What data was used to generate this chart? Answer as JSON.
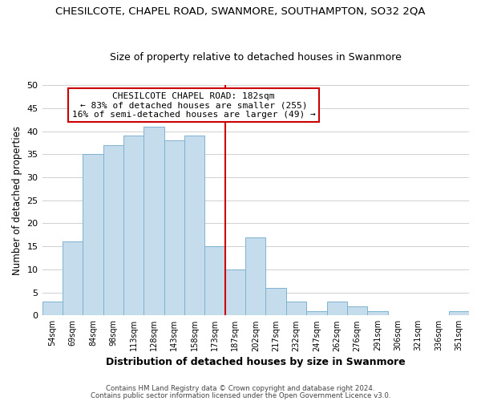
{
  "title": "CHESILCOTE, CHAPEL ROAD, SWANMORE, SOUTHAMPTON, SO32 2QA",
  "subtitle": "Size of property relative to detached houses in Swanmore",
  "xlabel": "Distribution of detached houses by size in Swanmore",
  "ylabel": "Number of detached properties",
  "footer_line1": "Contains HM Land Registry data © Crown copyright and database right 2024.",
  "footer_line2": "Contains public sector information licensed under the Open Government Licence v3.0.",
  "bar_labels": [
    "54sqm",
    "69sqm",
    "84sqm",
    "98sqm",
    "113sqm",
    "128sqm",
    "143sqm",
    "158sqm",
    "173sqm",
    "187sqm",
    "202sqm",
    "217sqm",
    "232sqm",
    "247sqm",
    "262sqm",
    "276sqm",
    "291sqm",
    "306sqm",
    "321sqm",
    "336sqm",
    "351sqm"
  ],
  "bar_values": [
    3,
    16,
    35,
    37,
    39,
    41,
    38,
    39,
    15,
    10,
    17,
    6,
    3,
    1,
    3,
    2,
    1,
    0,
    0,
    0,
    1
  ],
  "bar_color": "#c5dced",
  "bar_edge_color": "#7db3d0",
  "reference_line_color": "#cc0000",
  "annotation_title": "CHESILCOTE CHAPEL ROAD: 182sqm",
  "annotation_line1": "← 83% of detached houses are smaller (255)",
  "annotation_line2": "16% of semi-detached houses are larger (49) →",
  "annotation_box_edge": "#cc0000",
  "ylim": [
    0,
    50
  ],
  "yticks": [
    0,
    5,
    10,
    15,
    20,
    25,
    30,
    35,
    40,
    45,
    50
  ],
  "background_color": "#ffffff",
  "grid_color": "#d0d0d0"
}
